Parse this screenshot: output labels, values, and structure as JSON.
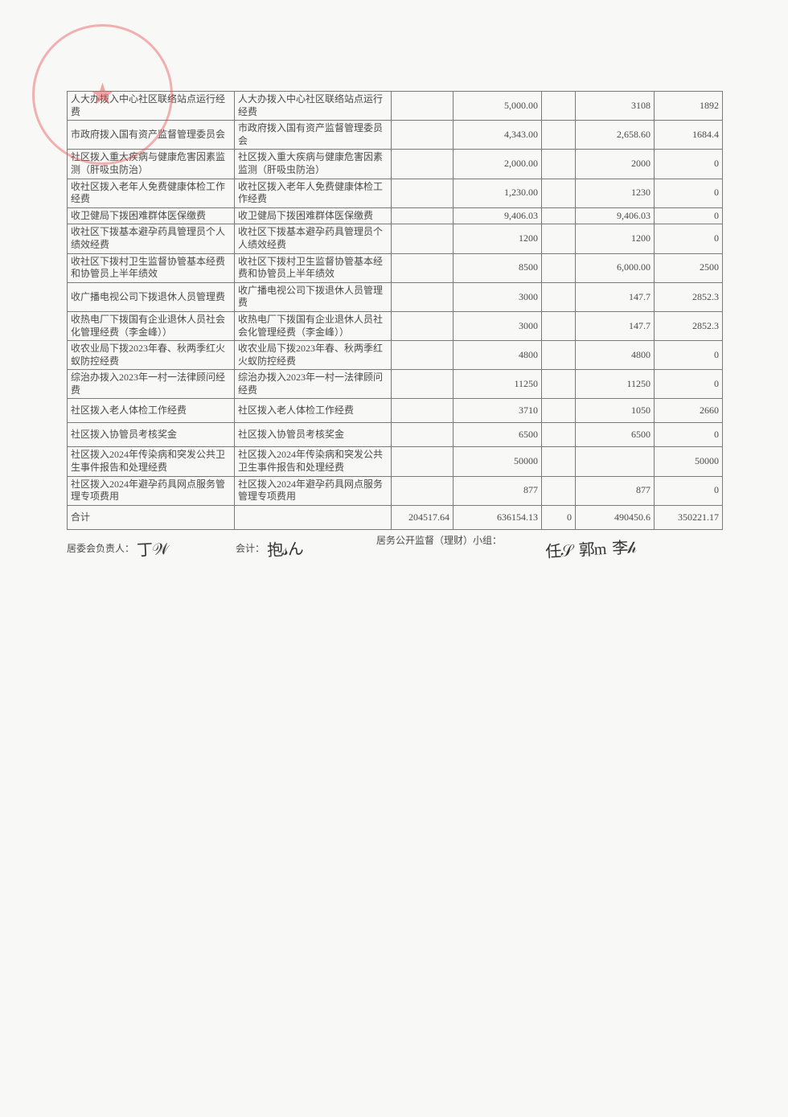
{
  "table": {
    "rows": [
      {
        "h": "tall",
        "a": "人大办拨入中心社区联络站点运行经费",
        "b": "人大办拨入中心社区联络站点运行经费",
        "c": "",
        "d": "5,000.00",
        "e": "",
        "f": "3108",
        "g": "1892"
      },
      {
        "h": "tall",
        "a": "市政府拨入国有资产监督管理委员会",
        "b": "市政府拨入国有资产监督管理委员会",
        "c": "",
        "d": "4,343.00",
        "e": "",
        "f": "2,658.60",
        "g": "1684.4"
      },
      {
        "h": "tall",
        "a": "社区拨入重大疾病与健康危害因素监测（肝吸虫防治）",
        "b": "社区拨入重大疾病与健康危害因素监测（肝吸虫防治）",
        "c": "",
        "d": "2,000.00",
        "e": "",
        "f": "2000",
        "g": "0"
      },
      {
        "h": "tall",
        "a": "收社区拨入老年人免费健康体检工作经费",
        "b": "收社区拨入老年人免费健康体检工作经费",
        "c": "",
        "d": "1,230.00",
        "e": "",
        "f": "1230",
        "g": "0"
      },
      {
        "h": "short",
        "a": "收卫健局下拨困难群体医保缴费",
        "b": "收卫健局下拨困难群体医保缴费",
        "c": "",
        "d": "9,406.03",
        "e": "",
        "f": "9,406.03",
        "g": "0"
      },
      {
        "h": "tall",
        "a": "收社区下拨基本避孕药具管理员个人绩效经费",
        "b": "收社区下拨基本避孕药具管理员个人绩效经费",
        "c": "",
        "d": "1200",
        "e": "",
        "f": "1200",
        "g": "0"
      },
      {
        "h": "tall",
        "a": "收社区下拨村卫生监督协管基本经费和协管员上半年绩效",
        "b": "收社区下拨村卫生监督协管基本经费和协管员上半年绩效",
        "c": "",
        "d": "8500",
        "e": "",
        "f": "6,000.00",
        "g": "2500"
      },
      {
        "h": "tall",
        "a": "收广播电视公司下拨退休人员管理费",
        "b": "收广播电视公司下拨退休人员管理费",
        "c": "",
        "d": "3000",
        "e": "",
        "f": "147.7",
        "g": "2852.3"
      },
      {
        "h": "tall",
        "a": "收热电厂下拨国有企业退休人员社会化管理经费（李金峰））",
        "b": "收热电厂下拨国有企业退休人员社会化管理经费（李金峰））",
        "c": "",
        "d": "3000",
        "e": "",
        "f": "147.7",
        "g": "2852.3"
      },
      {
        "h": "tall",
        "a": "收农业局下拨2023年春、秋两季红火蚁防控经费",
        "b": "收农业局下拨2023年春、秋两季红火蚁防控经费",
        "c": "",
        "d": "4800",
        "e": "",
        "f": "4800",
        "g": "0"
      },
      {
        "h": "tall",
        "a": "综治办拨入2023年一村一法律顾问经费",
        "b": "综治办拨入2023年一村一法律顾问经费",
        "c": "",
        "d": "11250",
        "e": "",
        "f": "11250",
        "g": "0"
      },
      {
        "h": "tall",
        "a": "社区拨入老人体检工作经费",
        "b": "社区拨入老人体检工作经费",
        "c": "",
        "d": "3710",
        "e": "",
        "f": "1050",
        "g": "2660"
      },
      {
        "h": "tall",
        "a": "社区拨入协管员考核奖金",
        "b": "社区拨入协管员考核奖金",
        "c": "",
        "d": "6500",
        "e": "",
        "f": "6500",
        "g": "0"
      },
      {
        "h": "tall",
        "a": "社区拨入2024年传染病和突发公共卫生事件报告和处理经费",
        "b": "社区拨入2024年传染病和突发公共卫生事件报告和处理经费",
        "c": "",
        "d": "50000",
        "e": "",
        "f": "",
        "g": "50000"
      },
      {
        "h": "tall",
        "a": "社区拨入2024年避孕药具网点服务管理专项费用",
        "b": "社区拨入2024年避孕药具网点服务管理专项费用",
        "c": "",
        "d": "877",
        "e": "",
        "f": "877",
        "g": "0"
      },
      {
        "h": "tall",
        "a": "合计",
        "b": "",
        "c": "204517.64",
        "d": "636154.13",
        "e": "0",
        "f": "490450.6",
        "g": "350221.17"
      }
    ]
  },
  "signatures": {
    "role_a": "居委会负责人：",
    "role_b": "会计：",
    "role_c": "居务公开监督（理财）小组："
  }
}
